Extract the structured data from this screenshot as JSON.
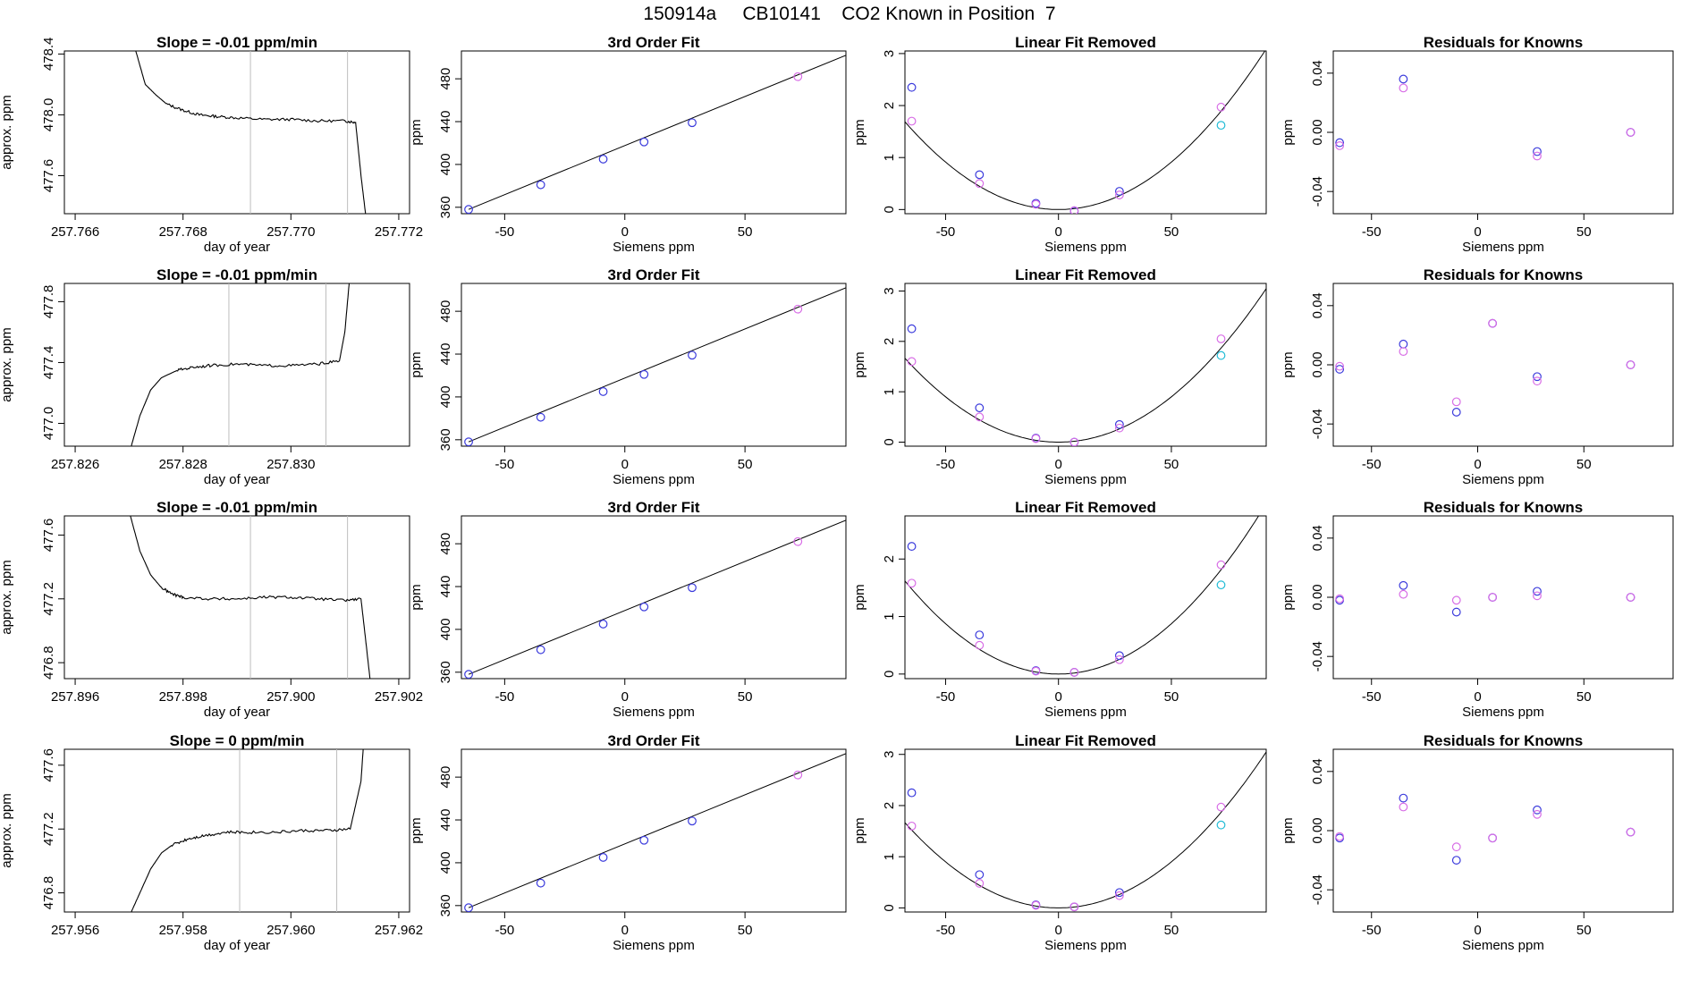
{
  "figure": {
    "title": "150914a     CB10141    CO2 Known in Position  7"
  },
  "colors": {
    "line": "#000000",
    "frame": "#000000",
    "vline": "#bdbdbd",
    "blue": "#3b3bdc",
    "magenta": "#d86ee6",
    "cyan": "#22bcd6"
  },
  "chart_data": [
    {
      "type": "line",
      "row": 1,
      "col": 1,
      "title": "Slope =  -0.01  ppm/min",
      "xlabel": "day of year",
      "ylabel": "approx. ppm",
      "xlim": [
        257.7658,
        257.7722
      ],
      "ylim": [
        477.35,
        478.42
      ],
      "xticks": [
        257.766,
        257.768,
        257.77,
        257.772
      ],
      "yticks": [
        477.6,
        478.0,
        478.4
      ],
      "vlines": [
        257.76925,
        257.77105
      ],
      "x": [
        257.7671,
        257.7673,
        257.7675,
        257.7677,
        257.768,
        257.7683,
        257.7686,
        257.769,
        257.7695,
        257.77,
        257.7705,
        257.771,
        257.7712,
        257.7713,
        257.7714
      ],
      "y": [
        478.45,
        478.2,
        478.13,
        478.07,
        478.03,
        478.0,
        477.99,
        477.98,
        477.97,
        477.97,
        477.96,
        477.96,
        477.95,
        477.6,
        477.3
      ]
    },
    {
      "type": "scatter",
      "row": 1,
      "col": 2,
      "title": "3rd Order Fit",
      "xlabel": "Siemens ppm",
      "ylabel": "ppm",
      "xlim": [
        -68,
        92
      ],
      "ylim": [
        354,
        506
      ],
      "xticks": [
        -50,
        0,
        50
      ],
      "yticks": [
        360,
        400,
        440,
        480
      ],
      "fit_line": {
        "x": [
          -65,
          92
        ],
        "y": [
          358,
          502
        ]
      },
      "series": [
        {
          "color": "blue",
          "x": [
            -65,
            -35,
            -9,
            8,
            28
          ],
          "y": [
            358,
            381,
            405,
            421,
            439
          ]
        },
        {
          "color": "magenta",
          "x": [
            72
          ],
          "y": [
            482
          ]
        }
      ]
    },
    {
      "type": "scatter",
      "row": 1,
      "col": 3,
      "title": "Linear Fit Removed",
      "xlabel": "Siemens ppm",
      "ylabel": "ppm",
      "xlim": [
        -68,
        92
      ],
      "ylim": [
        -0.08,
        3.05
      ],
      "xticks": [
        -50,
        0,
        50
      ],
      "yticks": [
        0.0,
        1.0,
        2.0,
        3.0
      ],
      "curve": {
        "x0": 0,
        "a": 0.000365,
        "b": 0,
        "c": 0.0
      },
      "series": [
        {
          "color": "blue",
          "x": [
            -65,
            -35,
            -10,
            7,
            27
          ],
          "y": [
            2.35,
            0.67,
            0.12,
            -0.03,
            0.35
          ]
        },
        {
          "color": "magenta",
          "x": [
            -65,
            -35,
            -10,
            7,
            27,
            72
          ],
          "y": [
            1.7,
            0.5,
            0.1,
            -0.02,
            0.28,
            1.97
          ]
        },
        {
          "color": "cyan",
          "x": [
            72
          ],
          "y": [
            1.62
          ]
        }
      ]
    },
    {
      "type": "scatter",
      "row": 1,
      "col": 4,
      "title": "Residuals for Knowns",
      "xlabel": "Siemens ppm",
      "ylabel": "ppm",
      "xlim": [
        -68,
        92
      ],
      "ylim": [
        -0.055,
        0.055
      ],
      "xticks": [
        -50,
        0,
        50
      ],
      "yticks": [
        -0.04,
        0.0,
        0.04
      ],
      "series": [
        {
          "color": "blue",
          "x": [
            -65,
            -35,
            28,
            72
          ],
          "y": [
            -0.007,
            0.036,
            -0.013,
            0.0
          ]
        },
        {
          "color": "magenta",
          "x": [
            -65,
            -35,
            28,
            72
          ],
          "y": [
            -0.009,
            0.03,
            -0.016,
            0.0
          ]
        }
      ]
    },
    {
      "type": "line",
      "row": 2,
      "col": 1,
      "title": "Slope =  -0.01  ppm/min",
      "xlabel": "day of year",
      "ylabel": "approx. ppm",
      "xlim": [
        257.8258,
        257.8322
      ],
      "ylim": [
        476.85,
        477.92
      ],
      "xticks": [
        257.826,
        257.828,
        257.83
      ],
      "yticks": [
        477.0,
        477.4,
        477.8
      ],
      "vlines": [
        257.82885,
        257.83065
      ],
      "x": [
        257.827,
        257.8272,
        257.8274,
        257.8276,
        257.8279,
        257.8282,
        257.8285,
        257.829,
        257.8295,
        257.83,
        257.8305,
        257.8309,
        257.831,
        257.8311
      ],
      "y": [
        476.8,
        477.05,
        477.22,
        477.3,
        477.35,
        477.37,
        477.38,
        477.39,
        477.38,
        477.38,
        477.39,
        477.41,
        477.6,
        478.0
      ]
    },
    {
      "type": "scatter",
      "row": 2,
      "col": 2,
      "title": "3rd Order Fit",
      "xlabel": "Siemens ppm",
      "ylabel": "ppm",
      "xlim": [
        -68,
        92
      ],
      "ylim": [
        354,
        506
      ],
      "xticks": [
        -50,
        0,
        50
      ],
      "yticks": [
        360,
        400,
        440,
        480
      ],
      "fit_line": {
        "x": [
          -65,
          92
        ],
        "y": [
          358,
          502
        ]
      },
      "series": [
        {
          "color": "blue",
          "x": [
            -65,
            -35,
            -9,
            8,
            28
          ],
          "y": [
            358,
            381,
            405,
            421,
            439
          ]
        },
        {
          "color": "magenta",
          "x": [
            72
          ],
          "y": [
            482
          ]
        }
      ]
    },
    {
      "type": "scatter",
      "row": 2,
      "col": 3,
      "title": "Linear Fit Removed",
      "xlabel": "Siemens ppm",
      "ylabel": "ppm",
      "xlim": [
        -68,
        92
      ],
      "ylim": [
        -0.08,
        3.15
      ],
      "xticks": [
        -50,
        0,
        50
      ],
      "yticks": [
        0.0,
        1.0,
        2.0,
        3.0
      ],
      "curve": {
        "x0": 0,
        "a": 0.00036,
        "b": 0,
        "c": 0.0
      },
      "series": [
        {
          "color": "blue",
          "x": [
            -65,
            -35,
            -10,
            7,
            27
          ],
          "y": [
            2.25,
            0.68,
            0.08,
            0.0,
            0.35
          ]
        },
        {
          "color": "magenta",
          "x": [
            -65,
            -35,
            -10,
            7,
            27,
            72
          ],
          "y": [
            1.6,
            0.5,
            0.07,
            0.0,
            0.28,
            2.05
          ]
        },
        {
          "color": "cyan",
          "x": [
            72
          ],
          "y": [
            1.72
          ]
        }
      ]
    },
    {
      "type": "scatter",
      "row": 2,
      "col": 4,
      "title": "Residuals for Knowns",
      "xlabel": "Siemens ppm",
      "ylabel": "ppm",
      "xlim": [
        -68,
        92
      ],
      "ylim": [
        -0.055,
        0.055
      ],
      "xticks": [
        -50,
        0,
        50
      ],
      "yticks": [
        -0.04,
        0.0,
        0.04
      ],
      "series": [
        {
          "color": "blue",
          "x": [
            -65,
            -35,
            -10,
            7,
            28,
            72
          ],
          "y": [
            -0.003,
            0.014,
            -0.032,
            0.028,
            -0.008,
            0.0
          ]
        },
        {
          "color": "magenta",
          "x": [
            -65,
            -35,
            -10,
            7,
            28,
            72
          ],
          "y": [
            -0.001,
            0.009,
            -0.025,
            0.028,
            -0.011,
            0.0
          ]
        }
      ]
    },
    {
      "type": "line",
      "row": 3,
      "col": 1,
      "title": "Slope =  -0.01  ppm/min",
      "xlabel": "day of year",
      "ylabel": "approx. ppm",
      "xlim": [
        257.8958,
        257.9022
      ],
      "ylim": [
        476.7,
        477.72
      ],
      "xticks": [
        257.896,
        257.898,
        257.9,
        257.902
      ],
      "yticks": [
        476.8,
        477.2,
        477.6
      ],
      "vlines": [
        257.89925,
        257.90105
      ],
      "x": [
        257.897,
        257.8972,
        257.8974,
        257.8976,
        257.8978,
        257.898,
        257.8985,
        257.899,
        257.8995,
        257.9,
        257.9005,
        257.901,
        257.9013,
        257.9014,
        257.9015
      ],
      "y": [
        477.75,
        477.5,
        477.35,
        477.27,
        477.23,
        477.21,
        477.2,
        477.2,
        477.21,
        477.21,
        477.2,
        477.19,
        477.2,
        476.9,
        476.6
      ]
    },
    {
      "type": "scatter",
      "row": 3,
      "col": 2,
      "title": "3rd Order Fit",
      "xlabel": "Siemens ppm",
      "ylabel": "ppm",
      "xlim": [
        -68,
        92
      ],
      "ylim": [
        354,
        506
      ],
      "xticks": [
        -50,
        0,
        50
      ],
      "yticks": [
        360,
        400,
        440,
        480
      ],
      "fit_line": {
        "x": [
          -65,
          92
        ],
        "y": [
          358,
          502
        ]
      },
      "series": [
        {
          "color": "blue",
          "x": [
            -65,
            -35,
            -9,
            8,
            28
          ],
          "y": [
            358,
            381,
            405,
            421,
            439
          ]
        },
        {
          "color": "magenta",
          "x": [
            72
          ],
          "y": [
            482
          ]
        }
      ]
    },
    {
      "type": "scatter",
      "row": 3,
      "col": 3,
      "title": "Linear Fit Removed",
      "xlabel": "Siemens ppm",
      "ylabel": "ppm",
      "xlim": [
        -68,
        92
      ],
      "ylim": [
        -0.08,
        2.75
      ],
      "xticks": [
        -50,
        0,
        50
      ],
      "yticks": [
        0.0,
        1.0,
        2.0
      ],
      "curve": {
        "x0": 0,
        "a": 0.00035,
        "b": 0,
        "c": 0.0
      },
      "series": [
        {
          "color": "blue",
          "x": [
            -65,
            -35,
            -10,
            7,
            27
          ],
          "y": [
            2.22,
            0.68,
            0.06,
            0.03,
            0.32
          ]
        },
        {
          "color": "magenta",
          "x": [
            -65,
            -35,
            -10,
            7,
            27,
            72
          ],
          "y": [
            1.58,
            0.5,
            0.05,
            0.03,
            0.25,
            1.9
          ]
        },
        {
          "color": "cyan",
          "x": [
            72
          ],
          "y": [
            1.55
          ]
        }
      ]
    },
    {
      "type": "scatter",
      "row": 3,
      "col": 4,
      "title": "Residuals for Knowns",
      "xlabel": "Siemens ppm",
      "ylabel": "ppm",
      "xlim": [
        -68,
        92
      ],
      "ylim": [
        -0.055,
        0.055
      ],
      "xticks": [
        -50,
        0,
        50
      ],
      "yticks": [
        -0.04,
        0.0,
        0.04
      ],
      "series": [
        {
          "color": "blue",
          "x": [
            -65,
            -35,
            -10,
            7,
            28,
            72
          ],
          "y": [
            -0.002,
            0.008,
            -0.01,
            0.0,
            0.004,
            0.0
          ]
        },
        {
          "color": "magenta",
          "x": [
            -65,
            -35,
            -10,
            7,
            28,
            72
          ],
          "y": [
            -0.001,
            0.002,
            -0.002,
            0.0,
            0.001,
            0.0
          ]
        }
      ]
    },
    {
      "type": "line",
      "row": 4,
      "col": 1,
      "title": "Slope =  0  ppm/min",
      "xlabel": "day of year",
      "ylabel": "approx. ppm",
      "xlim": [
        257.9558,
        257.9622
      ],
      "ylim": [
        476.68,
        477.7
      ],
      "xticks": [
        257.956,
        257.958,
        257.96,
        257.962
      ],
      "yticks": [
        476.8,
        477.2,
        477.6
      ],
      "vlines": [
        257.95905,
        257.96085
      ],
      "x": [
        257.957,
        257.9572,
        257.9574,
        257.9576,
        257.9578,
        257.9581,
        257.9584,
        257.9588,
        257.9592,
        257.9597,
        257.9602,
        257.9607,
        257.9611,
        257.9613,
        257.9614
      ],
      "y": [
        476.65,
        476.8,
        476.95,
        477.05,
        477.1,
        477.14,
        477.16,
        477.18,
        477.18,
        477.18,
        477.19,
        477.19,
        477.2,
        477.5,
        478.0
      ]
    },
    {
      "type": "scatter",
      "row": 4,
      "col": 2,
      "title": "3rd Order Fit",
      "xlabel": "Siemens ppm",
      "ylabel": "ppm",
      "xlim": [
        -68,
        92
      ],
      "ylim": [
        354,
        506
      ],
      "xticks": [
        -50,
        0,
        50
      ],
      "yticks": [
        360,
        400,
        440,
        480
      ],
      "fit_line": {
        "x": [
          -65,
          92
        ],
        "y": [
          358,
          502
        ]
      },
      "series": [
        {
          "color": "blue",
          "x": [
            -65,
            -35,
            -9,
            8,
            28
          ],
          "y": [
            358,
            381,
            405,
            421,
            439
          ]
        },
        {
          "color": "magenta",
          "x": [
            72
          ],
          "y": [
            482
          ]
        }
      ]
    },
    {
      "type": "scatter",
      "row": 4,
      "col": 3,
      "title": "Linear Fit Removed",
      "xlabel": "Siemens ppm",
      "ylabel": "ppm",
      "xlim": [
        -68,
        92
      ],
      "ylim": [
        -0.08,
        3.1
      ],
      "xticks": [
        -50,
        0,
        50
      ],
      "yticks": [
        0.0,
        1.0,
        2.0,
        3.0
      ],
      "curve": {
        "x0": 0,
        "a": 0.00036,
        "b": 0,
        "c": 0.0
      },
      "series": [
        {
          "color": "blue",
          "x": [
            -65,
            -35,
            -10,
            7,
            27
          ],
          "y": [
            2.25,
            0.65,
            0.06,
            0.02,
            0.3
          ]
        },
        {
          "color": "magenta",
          "x": [
            -65,
            -35,
            -10,
            7,
            27,
            72
          ],
          "y": [
            1.6,
            0.48,
            0.05,
            0.02,
            0.24,
            1.97
          ]
        },
        {
          "color": "cyan",
          "x": [
            72
          ],
          "y": [
            1.62
          ]
        }
      ]
    },
    {
      "type": "scatter",
      "row": 4,
      "col": 4,
      "title": "Residuals for Knowns",
      "xlabel": "Siemens ppm",
      "ylabel": "ppm",
      "xlim": [
        -68,
        92
      ],
      "ylim": [
        -0.055,
        0.055
      ],
      "xticks": [
        -50,
        0,
        50
      ],
      "yticks": [
        -0.04,
        0.0,
        0.04
      ],
      "series": [
        {
          "color": "blue",
          "x": [
            -65,
            -35,
            -10,
            7,
            28,
            72
          ],
          "y": [
            -0.005,
            0.022,
            -0.02,
            -0.005,
            0.014,
            -0.001
          ]
        },
        {
          "color": "magenta",
          "x": [
            -65,
            -35,
            -10,
            7,
            28,
            72
          ],
          "y": [
            -0.004,
            0.016,
            -0.011,
            -0.005,
            0.011,
            -0.001
          ]
        }
      ]
    }
  ]
}
